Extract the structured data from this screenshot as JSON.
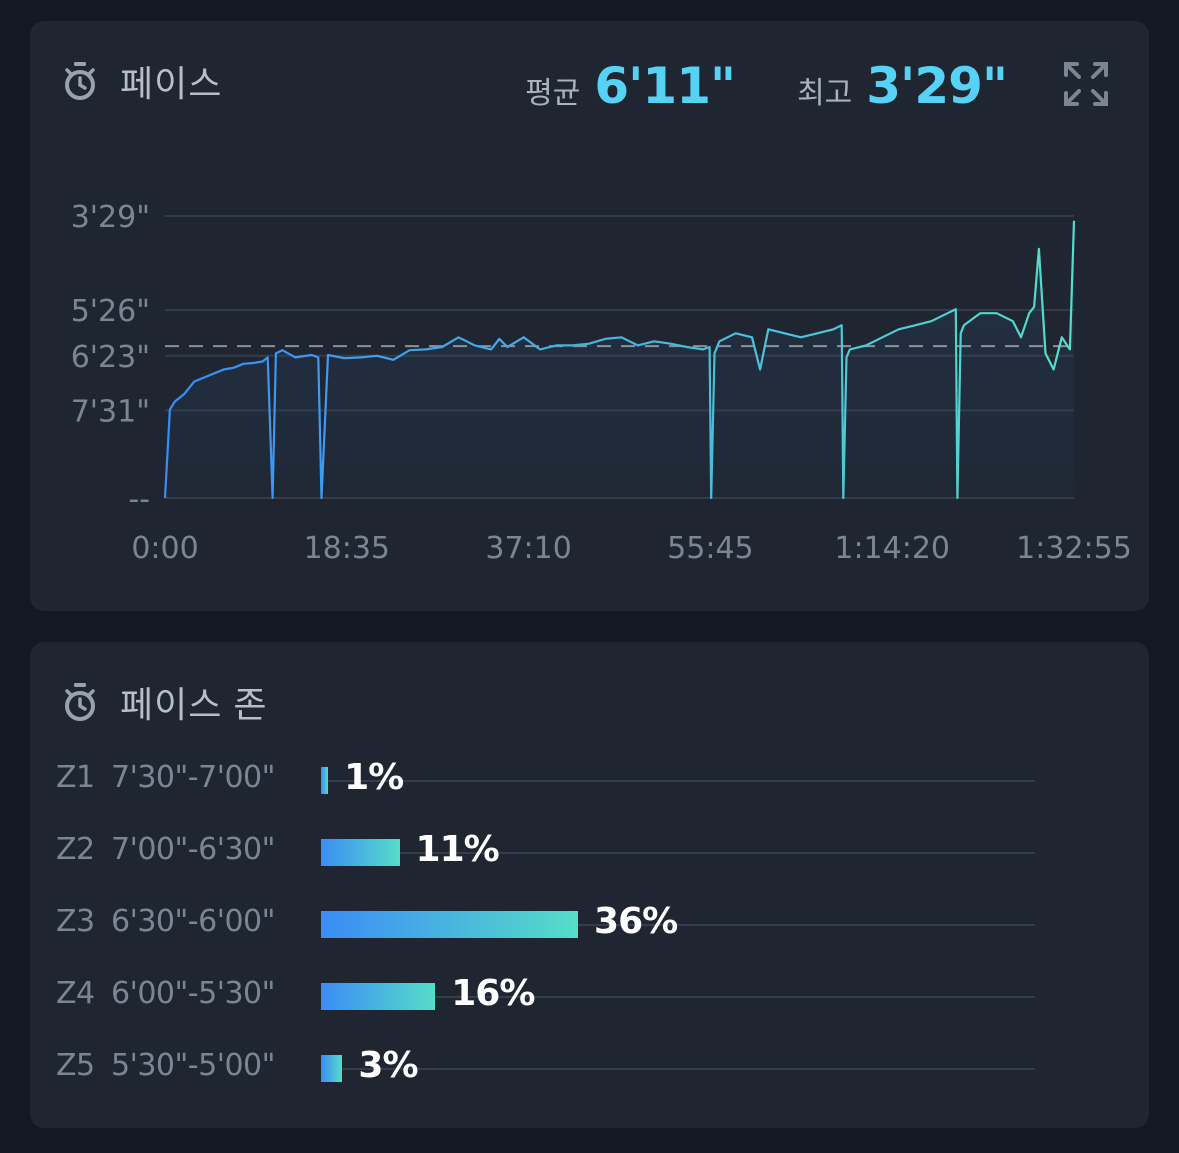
{
  "pace": {
    "title": "페이스",
    "icon": "stopwatch-icon",
    "avg_label": "평균",
    "avg_value": "6'11\"",
    "best_label": "최고",
    "best_value": "3'29\"",
    "expand_icon": "expand-icon"
  },
  "chart_data": {
    "type": "line",
    "y_axis": {
      "reversed": true,
      "tick_labels": [
        "3'29\"",
        "5'26\"",
        "6'23\"",
        "7'31\"",
        "--"
      ],
      "tick_values_sec_per_km": [
        209,
        326,
        383,
        451,
        560
      ]
    },
    "x_axis": {
      "tick_labels": [
        "0:00",
        "18:35",
        "37:10",
        "55:45",
        "1:14:20",
        "1:32:55"
      ],
      "tick_values_sec": [
        0,
        1115,
        2230,
        3345,
        4460,
        5575
      ]
    },
    "reference_line": {
      "label": "평균",
      "value_sec_per_km": 371,
      "style": "dashed"
    },
    "grid": true,
    "color_start": "#3b8cf5",
    "color_end": "#56ddc8",
    "series": [
      {
        "x": [
          0,
          30,
          60,
          120,
          180,
          240,
          300,
          360,
          420,
          480,
          540,
          600,
          630,
          660,
          680,
          700,
          720,
          800,
          900,
          940,
          960,
          1000,
          1100,
          1200,
          1300,
          1400,
          1500,
          1600,
          1700,
          1800,
          1900,
          2000,
          2050,
          2100,
          2200,
          2300,
          2400,
          2500,
          2600,
          2700,
          2800,
          2900,
          3000,
          3100,
          3200,
          3300,
          3340,
          3350,
          3370,
          3400,
          3500,
          3600,
          3650,
          3700,
          3800,
          3900,
          4000,
          4100,
          4150,
          4160,
          4180,
          4200,
          4300,
          4400,
          4500,
          4600,
          4700,
          4800,
          4850,
          4860,
          4880,
          4900,
          5000,
          5100,
          5200,
          5250,
          5300,
          5330,
          5360,
          5400,
          5450,
          5500,
          5550,
          5575
        ],
        "y": [
          560,
          450,
          440,
          430,
          415,
          410,
          405,
          400,
          398,
          393,
          392,
          390,
          385,
          560,
          380,
          378,
          376,
          385,
          382,
          385,
          560,
          382,
          386,
          385,
          383,
          388,
          376,
          375,
          372,
          360,
          370,
          375,
          362,
          372,
          360,
          375,
          370,
          370,
          368,
          362,
          360,
          370,
          365,
          368,
          372,
          375,
          372,
          560,
          380,
          365,
          355,
          360,
          400,
          350,
          355,
          360,
          355,
          350,
          345,
          560,
          385,
          375,
          370,
          360,
          350,
          345,
          340,
          330,
          325,
          560,
          355,
          345,
          330,
          330,
          340,
          360,
          330,
          322,
          250,
          380,
          400,
          360,
          375,
          215
        ]
      }
    ]
  },
  "zones": {
    "title": "페이스 존",
    "icon": "stopwatch-icon",
    "items": [
      {
        "id": "Z1",
        "range": "7'30\"-7'00\"",
        "percent_label": "1%",
        "percent": 1
      },
      {
        "id": "Z2",
        "range": "7'00\"-6'30\"",
        "percent_label": "11%",
        "percent": 11
      },
      {
        "id": "Z3",
        "range": "6'30\"-6'00\"",
        "percent_label": "36%",
        "percent": 36
      },
      {
        "id": "Z4",
        "range": "6'00\"-5'30\"",
        "percent_label": "16%",
        "percent": 16
      },
      {
        "id": "Z5",
        "range": "5'30\"-5'00\"",
        "percent_label": "3%",
        "percent": 3
      }
    ]
  }
}
